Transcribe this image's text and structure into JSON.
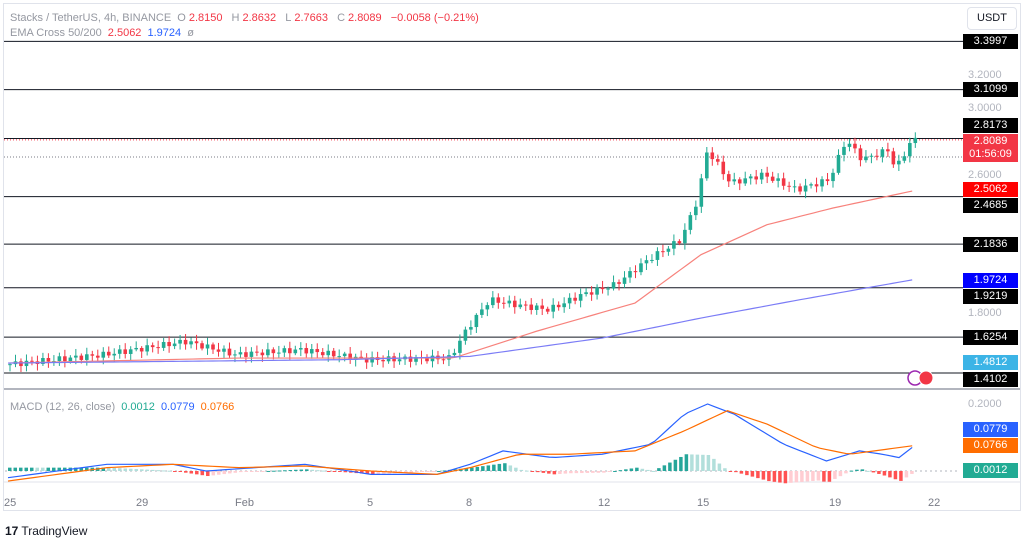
{
  "header": {
    "symbol": "Stacks / TetherUS, 4h, BINANCE",
    "o_label": "O",
    "o": "2.8150",
    "h_label": "H",
    "h": "2.8632",
    "l_label": "L",
    "l": "2.7663",
    "c_label": "C",
    "c": "2.8089",
    "change": "−0.0058 (−0.21%)"
  },
  "ema": {
    "label": "EMA Cross 50/200",
    "ema50": "2.5062",
    "ema200": "1.9724",
    "extra": "ø"
  },
  "macd": {
    "label": "MACD (12, 26, close)",
    "hist": "0.0012",
    "macd": "0.0779",
    "signal": "0.0766"
  },
  "currency_button": "USDT",
  "price_ticks": [
    "3.2000",
    "3.0000",
    "2.6000",
    "1.8000"
  ],
  "hlines": [
    {
      "price": 3.3997,
      "label": "3.3997"
    },
    {
      "price": 3.1099,
      "label": "3.1099"
    },
    {
      "price": 2.8173,
      "label": "2.8173"
    },
    {
      "price": 2.4685,
      "label": "2.4685"
    },
    {
      "price": 2.1836,
      "label": "2.1836"
    },
    {
      "price": 1.9219,
      "label": "1.9219"
    },
    {
      "price": 1.6254,
      "label": "1.6254"
    },
    {
      "price": 1.4102,
      "label": "1.4102"
    }
  ],
  "badges": {
    "last_price": "2.8089",
    "countdown": "01:56:09",
    "ema50": "2.5062",
    "ema200": "1.9724",
    "low": "1.4812",
    "macd": "0.0779",
    "signal": "0.0766",
    "hist": "0.0012",
    "macd_tick": "0.2000"
  },
  "dates": [
    {
      "day": 0,
      "label": "25"
    },
    {
      "day": 4,
      "label": "29"
    },
    {
      "day": 7,
      "label": "Feb"
    },
    {
      "day": 11,
      "label": "5"
    },
    {
      "day": 14,
      "label": "8"
    },
    {
      "day": 18,
      "label": "12"
    },
    {
      "day": 21,
      "label": "15"
    },
    {
      "day": 25,
      "label": "19"
    },
    {
      "day": 28,
      "label": "22"
    }
  ],
  "brand": "TradingView",
  "colors": {
    "up": "#22ab94",
    "down": "#f23645",
    "ema50": "#f7827c",
    "ema200": "#7b7cf6",
    "macd": "#2962ff",
    "signal": "#ff6d00"
  },
  "chart_data": {
    "type": "candlestick",
    "price_path": [
      [
        0,
        1.46
      ],
      [
        3,
        1.52
      ],
      [
        5.5,
        1.6
      ],
      [
        7,
        1.52
      ],
      [
        9,
        1.55
      ],
      [
        11,
        1.49
      ],
      [
        13.5,
        1.5
      ],
      [
        14,
        1.67
      ],
      [
        14.7,
        1.85
      ],
      [
        15.5,
        1.82
      ],
      [
        16.5,
        1.79
      ],
      [
        17.5,
        1.88
      ],
      [
        18.5,
        1.94
      ],
      [
        19.5,
        2.09
      ],
      [
        20.5,
        2.21
      ],
      [
        21,
        2.45
      ],
      [
        21.3,
        2.75
      ],
      [
        22,
        2.55
      ],
      [
        23,
        2.6
      ],
      [
        24,
        2.51
      ],
      [
        25,
        2.57
      ],
      [
        25.5,
        2.81
      ],
      [
        26,
        2.69
      ],
      [
        26.8,
        2.75
      ],
      [
        27,
        2.63
      ],
      [
        27.5,
        2.81
      ]
    ],
    "ema50": [
      [
        0,
        1.47
      ],
      [
        7,
        1.5
      ],
      [
        13.5,
        1.5
      ],
      [
        16,
        1.66
      ],
      [
        19,
        1.83
      ],
      [
        21,
        2.12
      ],
      [
        23,
        2.3
      ],
      [
        25,
        2.4
      ],
      [
        27.5,
        2.5062
      ]
    ],
    "ema200": [
      [
        0,
        1.47
      ],
      [
        10,
        1.49
      ],
      [
        14,
        1.51
      ],
      [
        18,
        1.62
      ],
      [
        21,
        1.74
      ],
      [
        24,
        1.85
      ],
      [
        27.5,
        1.9724
      ]
    ],
    "macd_line": [
      [
        0,
        -0.02
      ],
      [
        3,
        0.02
      ],
      [
        5,
        0.02
      ],
      [
        6,
        0
      ],
      [
        9,
        0.02
      ],
      [
        11,
        -0.01
      ],
      [
        13,
        -0.01
      ],
      [
        14,
        0.02
      ],
      [
        15,
        0.06
      ],
      [
        16.5,
        0.04
      ],
      [
        18,
        0.05
      ],
      [
        19.5,
        0.08
      ],
      [
        20.5,
        0.17
      ],
      [
        21.2,
        0.2
      ],
      [
        22,
        0.17
      ],
      [
        23.5,
        0.08
      ],
      [
        24.8,
        0.03
      ],
      [
        25.8,
        0.06
      ],
      [
        26.5,
        0.05
      ],
      [
        27,
        0.04
      ],
      [
        27.5,
        0.0779
      ]
    ],
    "signal_line": [
      [
        0,
        -0.03
      ],
      [
        3,
        0.01
      ],
      [
        5,
        0.02
      ],
      [
        7,
        0.01
      ],
      [
        9,
        0.015
      ],
      [
        11,
        0
      ],
      [
        13,
        -0.01
      ],
      [
        14,
        0.01
      ],
      [
        15.5,
        0.05
      ],
      [
        17,
        0.05
      ],
      [
        19,
        0.06
      ],
      [
        20.5,
        0.12
      ],
      [
        21.8,
        0.18
      ],
      [
        23,
        0.14
      ],
      [
        24.5,
        0.07
      ],
      [
        25.5,
        0.05
      ],
      [
        27.5,
        0.0766
      ]
    ]
  }
}
